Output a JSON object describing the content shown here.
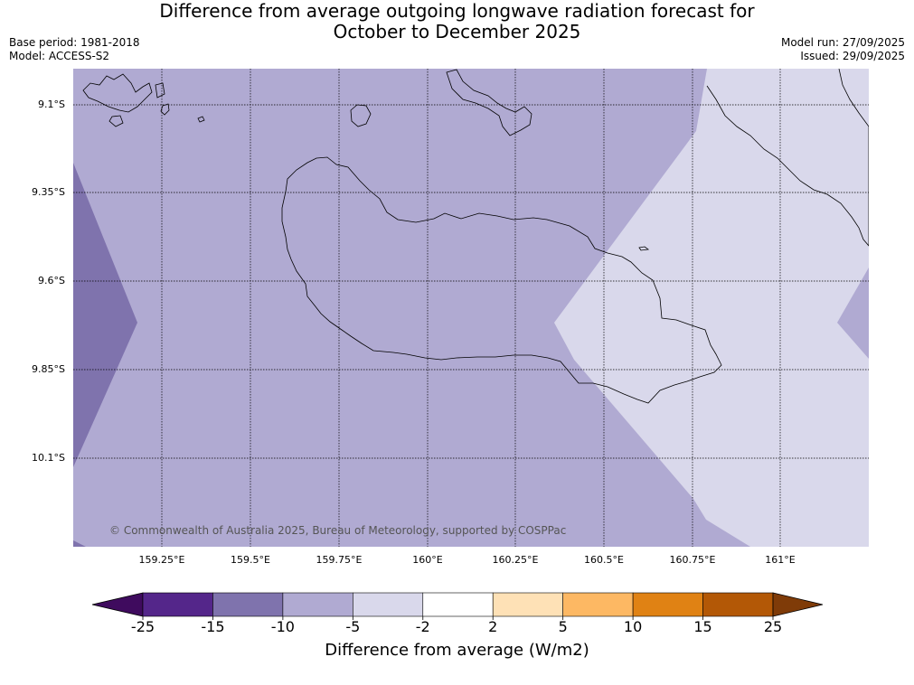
{
  "title_line1": "Difference from average outgoing longwave radiation forecast for",
  "title_line2": "October to December 2025",
  "base_period": "Base period: 1981-2018",
  "model": "Model: ACCESS-S2",
  "model_run": "Model run: 27/09/2025",
  "issued": "Issued: 29/09/2025",
  "lat_labels": [
    "9.1°S",
    "9.35°S",
    "9.6°S",
    "9.85°S",
    "10.1°S"
  ],
  "lon_labels": [
    "159.25°E",
    "159.5°E",
    "159.75°E",
    "160°E",
    "160.25°E",
    "160.5°E",
    "160.75°E",
    "161°E"
  ],
  "copyright": "© Commonwealth of Australia 2025, Bureau of Meteorology, supported by COSPPac",
  "colorbar": {
    "ticks": [
      "-25",
      "-15",
      "-10",
      "-5",
      "-2",
      "2",
      "5",
      "10",
      "15",
      "25"
    ],
    "colors": [
      "#3f0b5e",
      "#54268a",
      "#7f73ad",
      "#b0aad2",
      "#d9d8eb",
      "#ffffff",
      "#fee1b6",
      "#fdb863",
      "#e08214",
      "#b35806",
      "#7f3b08"
    ],
    "label": "Difference from average (W/m2)"
  }
}
